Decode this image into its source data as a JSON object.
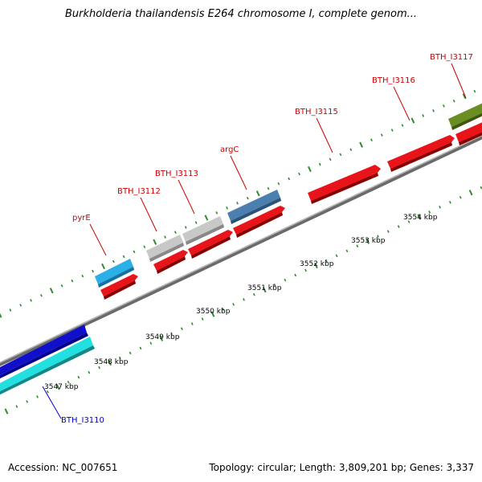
{
  "title": "Burkholderia thailandensis E264 chromosome I, complete genom...",
  "footer": {
    "accession": "Accession: NC_007651",
    "topology": "Topology: circular; Length: 3,809,201 bp; Genes: 3,337"
  },
  "colors": {
    "backbone": "#7a7a7a",
    "tick": "#2e8b2e",
    "cds_red": "#e8141a",
    "gene_red_label": "#cc0000",
    "gene_blue_label": "#0000cc"
  },
  "scale_labels": [
    {
      "kbp": 3547,
      "text": "3547 kbp"
    },
    {
      "kbp": 3548,
      "text": "3548 kbp"
    },
    {
      "kbp": 3549,
      "text": "3549 kbp"
    },
    {
      "kbp": 3550,
      "text": "3550 kbp"
    },
    {
      "kbp": 3551,
      "text": "3551 kbp"
    },
    {
      "kbp": 3552,
      "text": "3552 kbp"
    },
    {
      "kbp": 3553,
      "text": "3553 kbp"
    },
    {
      "kbp": 3554,
      "text": "3554 kbp"
    }
  ],
  "genes": [
    {
      "name": "BTH_I3110",
      "color": "#0000cc"
    },
    {
      "name": "pyrE",
      "color": "#cc0000"
    },
    {
      "name": "BTH_I3112",
      "color": "#cc0000"
    },
    {
      "name": "BTH_I3113",
      "color": "#cc0000"
    },
    {
      "name": "argC",
      "color": "#cc0000"
    },
    {
      "name": "BTH_I3115",
      "color": "#cc0000"
    },
    {
      "name": "BTH_I3116",
      "color": "#cc0000"
    },
    {
      "name": "BTH_I3117",
      "color": "#cc0000"
    }
  ]
}
